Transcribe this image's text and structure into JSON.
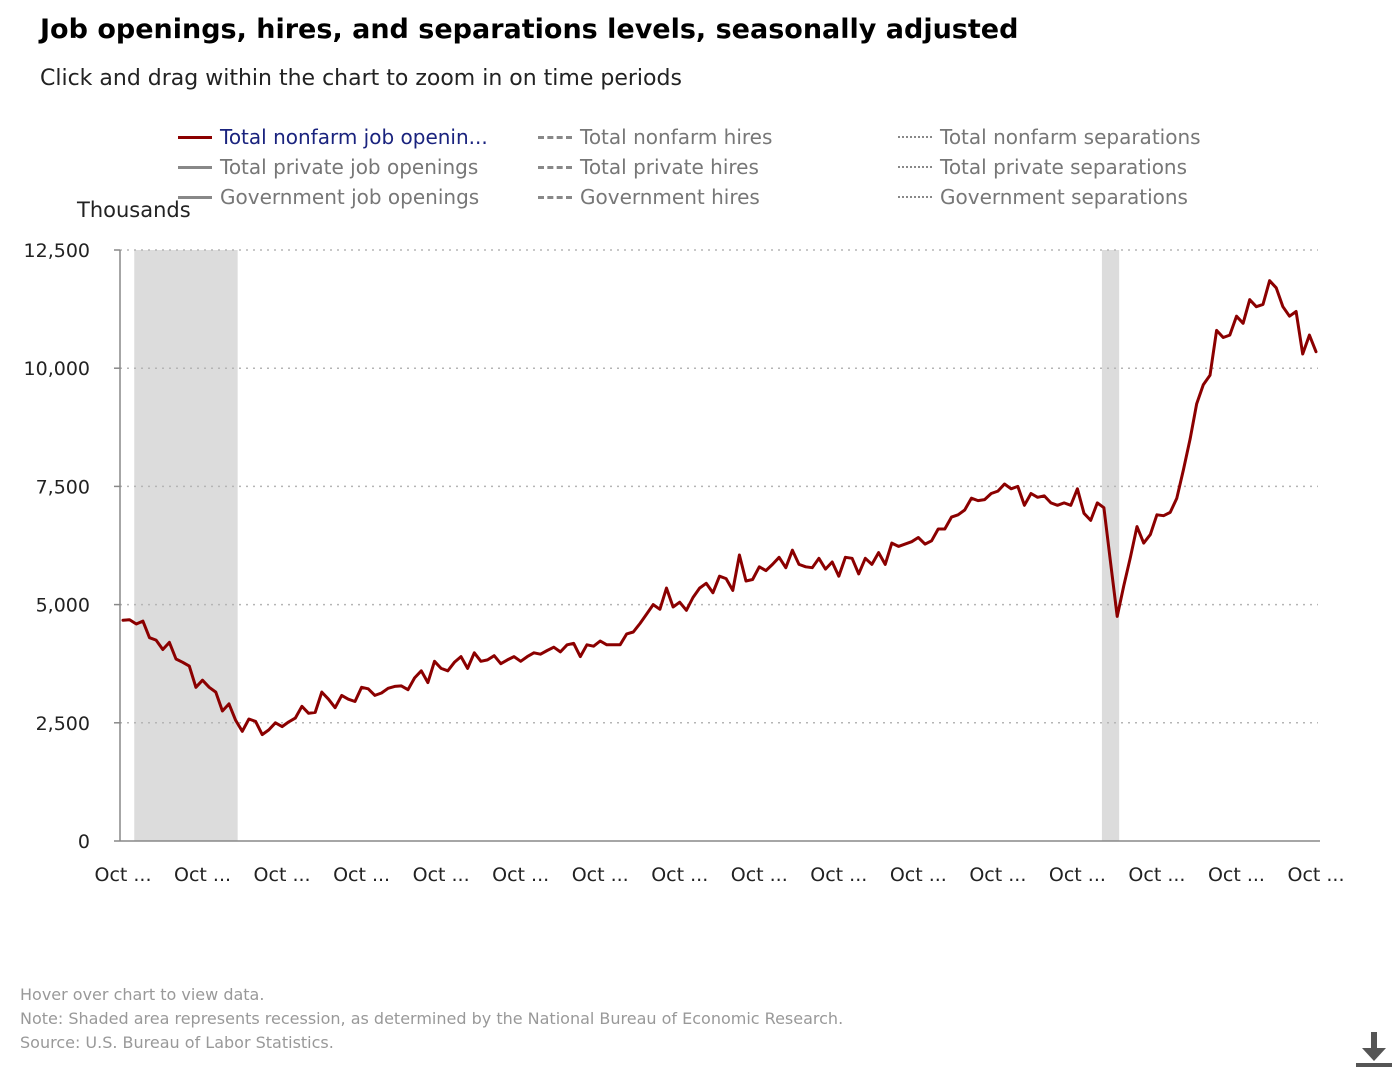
{
  "header": {
    "title": "Job openings, hires, and separations levels, seasonally adjusted",
    "subtitle": "Click and drag within the chart to zoom in on time periods"
  },
  "legend": {
    "items": [
      {
        "label": "Total nonfarm job openin...",
        "style": "solid",
        "color": "#8b0000",
        "active": true
      },
      {
        "label": "Total nonfarm hires",
        "style": "dashed",
        "color": "#888888",
        "active": false
      },
      {
        "label": "Total nonfarm separations",
        "style": "dotted",
        "color": "#888888",
        "active": false
      },
      {
        "label": "Total private job openings",
        "style": "solid",
        "color": "#888888",
        "active": false
      },
      {
        "label": "Total private hires",
        "style": "dashed",
        "color": "#888888",
        "active": false
      },
      {
        "label": "Total private separations",
        "style": "dotted",
        "color": "#888888",
        "active": false
      },
      {
        "label": "Government job openings",
        "style": "solid",
        "color": "#888888",
        "active": false
      },
      {
        "label": "Government hires",
        "style": "dashed",
        "color": "#888888",
        "active": false
      },
      {
        "label": "Government separations",
        "style": "dotted",
        "color": "#888888",
        "active": false
      }
    ]
  },
  "chart_data": {
    "type": "line",
    "ylabel": "Thousands",
    "ylim": [
      0,
      12500
    ],
    "yticks": [
      0,
      2500,
      5000,
      7500,
      10000,
      12500
    ],
    "ytick_labels": [
      "0",
      "2,500",
      "5,000",
      "7,500",
      "10,000",
      "12,500"
    ],
    "xtick_labels": [
      "Oct ...",
      "Oct ...",
      "Oct ...",
      "Oct ...",
      "Oct ...",
      "Oct ...",
      "Oct ...",
      "Oct ...",
      "Oct ...",
      "Oct ...",
      "Oct ...",
      "Oct ...",
      "Oct ...",
      "Oct ...",
      "Oct ...",
      "Oct ..."
    ],
    "grid": true,
    "recessions": [
      [
        2,
        17
      ],
      [
        148,
        150
      ]
    ],
    "series": [
      {
        "name": "Total nonfarm job openings",
        "color": "#8b0000",
        "values": [
          4670,
          4680,
          4590,
          4650,
          4300,
          4250,
          4050,
          4200,
          3850,
          3780,
          3700,
          3250,
          3400,
          3250,
          3150,
          2750,
          2900,
          2550,
          2320,
          2580,
          2530,
          2250,
          2350,
          2500,
          2420,
          2520,
          2600,
          2850,
          2700,
          2720,
          3150,
          3000,
          2820,
          3080,
          3000,
          2950,
          3250,
          3220,
          3080,
          3130,
          3230,
          3270,
          3280,
          3200,
          3450,
          3600,
          3350,
          3800,
          3650,
          3600,
          3780,
          3900,
          3650,
          3980,
          3800,
          3830,
          3920,
          3750,
          3830,
          3900,
          3800,
          3900,
          3980,
          3950,
          4030,
          4100,
          4000,
          4150,
          4180,
          3900,
          4150,
          4120,
          4230,
          4150,
          4150,
          4150,
          4380,
          4420,
          4600,
          4800,
          5000,
          4900,
          5350,
          4950,
          5050,
          4880,
          5150,
          5350,
          5450,
          5250,
          5600,
          5550,
          5300,
          6050,
          5500,
          5530,
          5800,
          5720,
          5850,
          6000,
          5780,
          6150,
          5850,
          5800,
          5780,
          5980,
          5750,
          5900,
          5600,
          6000,
          5980,
          5650,
          5980,
          5850,
          6100,
          5850,
          6300,
          6230,
          6280,
          6330,
          6420,
          6280,
          6350,
          6600,
          6600,
          6850,
          6900,
          7000,
          7250,
          7200,
          7220,
          7350,
          7400,
          7550,
          7450,
          7500,
          7100,
          7350,
          7270,
          7300,
          7150,
          7100,
          7150,
          7100,
          7450,
          6930,
          6780,
          7150,
          7050,
          5900,
          4750,
          5400,
          6000,
          6650,
          6300,
          6480,
          6900,
          6880,
          6950,
          7250,
          7850,
          8500,
          9250,
          9650,
          9850,
          10800,
          10650,
          10700,
          11100,
          10950,
          11450,
          11300,
          11350,
          11850,
          11700,
          11300,
          11100,
          11200,
          10300,
          10700,
          10350
        ]
      }
    ]
  },
  "footnotes": {
    "hover": "Hover over chart to view data.",
    "note": "Note: Shaded area represents recession, as determined by the National Bureau of Economic Research.",
    "source": "Source: U.S. Bureau of Labor Statistics."
  },
  "toolbar": {
    "download_icon": "download-icon"
  }
}
